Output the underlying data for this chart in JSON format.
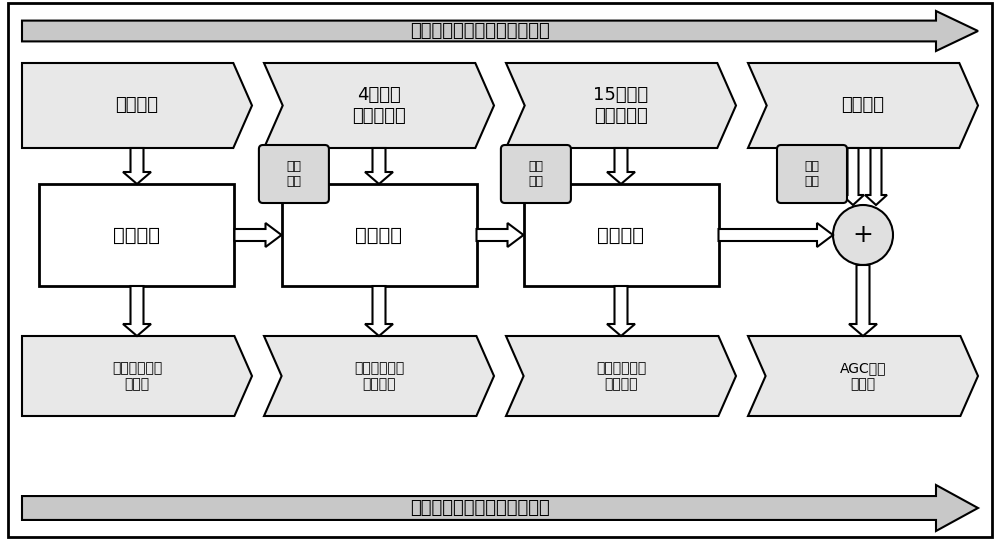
{
  "bg_color": "#ffffff",
  "top_arrow_text": "时间尺度越短，预测精度越高",
  "bottom_arrow_text": "机组不同，调节性能也不相同",
  "row2_labels": [
    "日前预测",
    "4小时级\n超短期预测",
    "15分钟级\n超短期预测",
    "实时状态"
  ],
  "row3_box_labels": [
    "日前计划",
    "滚动计划",
    "实时计划"
  ],
  "row3_small_labels": [
    "日前\n偏差",
    "滚动\n偏差",
    "实时\n偏差"
  ],
  "row4_labels": [
    "日前计划机组\n（慢）",
    "滚动计划机组\n（较慢）",
    "实时计划机组\n（较快）",
    "AGC机组\n（快）"
  ],
  "font_size_main": 13,
  "font_size_small": 10,
  "font_size_arrow_text": 13,
  "font_size_box": 14,
  "arrow_shaft_color": "#c8c8c8",
  "chevron_fill": "#e8e8e8",
  "box_fill": "#ffffff",
  "small_box_fill": "#d8d8d8",
  "circle_fill": "#e0e0e0"
}
